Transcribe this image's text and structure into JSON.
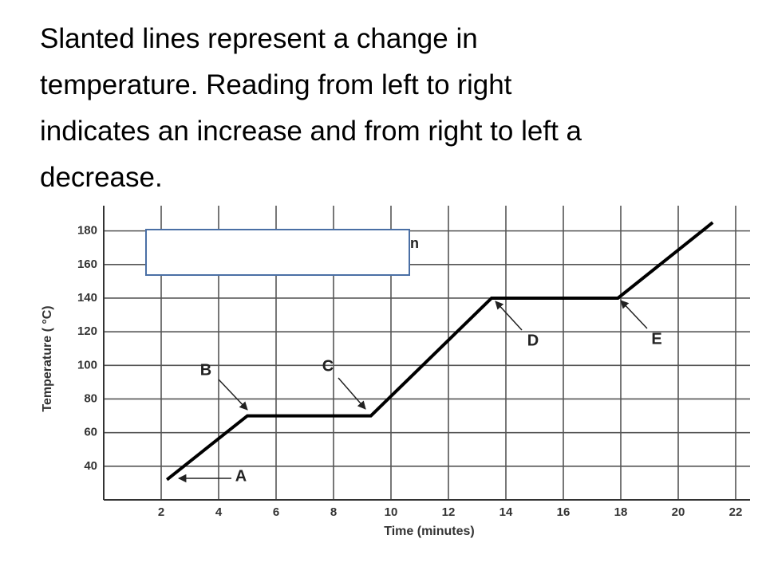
{
  "slide_text": [
    "Slanted lines represent a change in",
    "temperature.  Reading from left to right",
    "indicates an increase and from right to left a",
    "decrease."
  ],
  "chart_data": {
    "type": "line",
    "title": "n",
    "x_label": "Time (minutes)",
    "y_label": "Temperature ( °C)",
    "x": [
      2.2,
      5,
      9.3,
      13.5,
      17.9,
      21.2
    ],
    "values": [
      32,
      70,
      70,
      140,
      140,
      185
    ],
    "color": "#000000",
    "xlim": [
      0,
      22.5
    ],
    "xticks": [
      2,
      4,
      6,
      8,
      10,
      12,
      14,
      16,
      18,
      20,
      22
    ],
    "ylim": [
      20,
      195
    ],
    "yticks": [
      40,
      60,
      80,
      100,
      120,
      140,
      160,
      180
    ],
    "grid": true,
    "annotations": [
      "A",
      "B",
      "C",
      "D",
      "E"
    ]
  }
}
